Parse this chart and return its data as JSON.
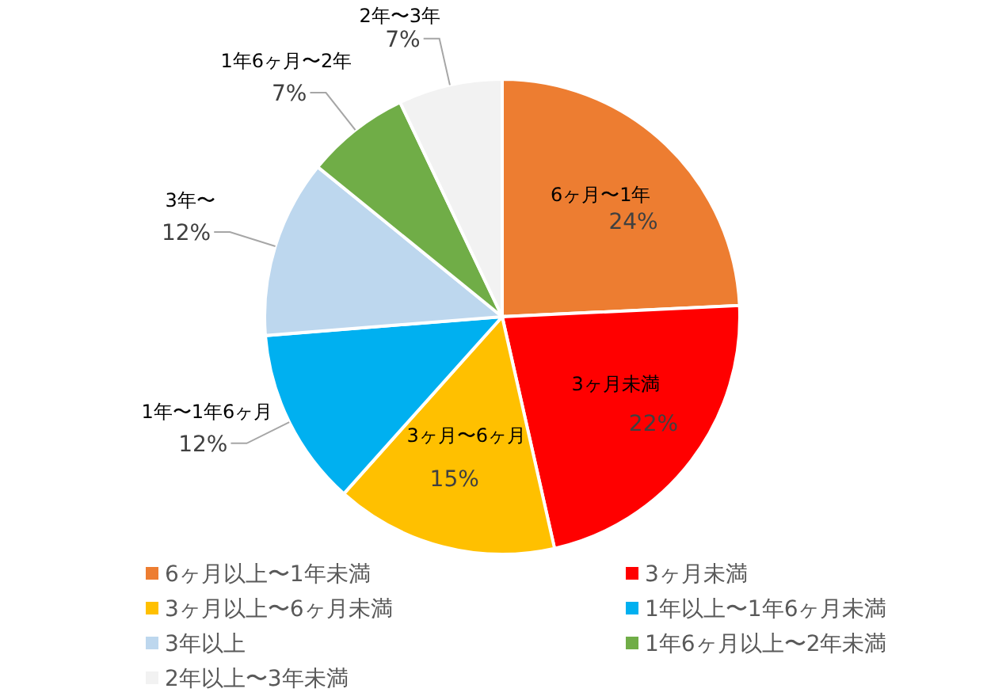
{
  "chart_data": {
    "type": "pie",
    "categories": [
      "6ヶ月以上〜1年未満",
      "3ヶ月未満",
      "3ヶ月以上〜6ヶ月未満",
      "1年以上〜1年6ヶ月未満",
      "3年以上",
      "1年6ヶ月以上〜2年未満",
      "2年以上〜3年未満"
    ],
    "values": [
      24,
      22,
      15,
      12,
      12,
      7,
      7
    ],
    "colors": [
      "#ed7d31",
      "#ff0000",
      "#ffc000",
      "#00b0f0",
      "#bdd7ee",
      "#70ad47",
      "#f2f2f2"
    ],
    "value_labels": [
      "24%",
      "22%",
      "15%",
      "12%",
      "12%",
      "7%",
      "7%"
    ],
    "annotations": [
      "6ヶ月〜1年",
      "3ヶ月未満",
      "3ヶ月〜6ヶ月",
      "1年〜1年6ヶ月",
      "3年〜",
      "1年6ヶ月〜2年",
      "2年〜3年"
    ],
    "legend": "bottom"
  }
}
